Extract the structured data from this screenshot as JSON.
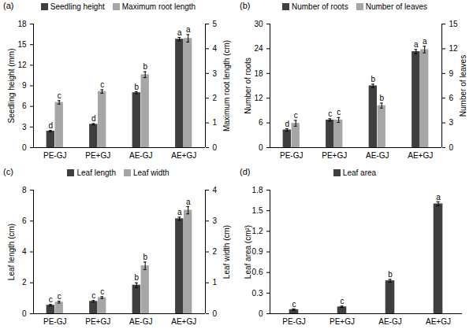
{
  "chart_data": [
    {
      "type": "bar",
      "title": "(a)",
      "legend": "top",
      "categories": [
        "PE-GJ",
        "PE+GJ",
        "AE-GJ",
        "AE+GJ"
      ],
      "ylabel": "Seedling height (mm)",
      "ylim": [
        0,
        18
      ],
      "yticks": [
        0,
        3,
        6,
        9,
        12,
        15,
        18
      ],
      "y2label": "Maximum root length (cm)",
      "y2lim": [
        0,
        5
      ],
      "y2ticks": [
        0,
        1,
        2,
        3,
        4,
        5
      ],
      "series": [
        {
          "name": "Seedling height",
          "color": "#3f3f3f",
          "values": [
            2.4,
            3.4,
            8.0,
            15.8
          ],
          "errors": [
            0.1,
            0.1,
            0.15,
            0.25
          ],
          "annotations": [
            "d",
            "d",
            "b",
            "a"
          ]
        },
        {
          "name": "Maximum root length",
          "color": "#a6a6a6",
          "axis": "y2",
          "values": [
            1.83,
            2.27,
            2.95,
            4.42
          ],
          "errors": [
            0.07,
            0.07,
            0.12,
            0.15
          ],
          "annotations": [
            "c",
            "c",
            "b",
            "a"
          ]
        }
      ]
    },
    {
      "type": "bar",
      "title": "(b)",
      "legend": "top",
      "categories": [
        "PE-GJ",
        "PE+GJ",
        "AE-GJ",
        "AE+GJ"
      ],
      "ylabel": "Number of roots",
      "ylim": [
        0,
        30
      ],
      "yticks": [
        0,
        6,
        12,
        18,
        24,
        30
      ],
      "y2label": "Number of leaves",
      "y2lim": [
        0,
        15
      ],
      "y2ticks": [
        0,
        3,
        6,
        9,
        12,
        15
      ],
      "series": [
        {
          "name": "Number of roots",
          "color": "#3f3f3f",
          "values": [
            4.3,
            6.7,
            15.0,
            23.3
          ],
          "errors": [
            0.3,
            0.3,
            0.4,
            0.5
          ],
          "annotations": [
            "d",
            "c",
            "b",
            "a"
          ]
        },
        {
          "name": "Number of leaves",
          "color": "#a6a6a6",
          "axis": "y2",
          "values": [
            2.95,
            3.35,
            5.1,
            11.9
          ],
          "errors": [
            0.35,
            0.3,
            0.3,
            0.4
          ],
          "annotations": [
            "c",
            "c",
            "b",
            "a"
          ]
        }
      ]
    },
    {
      "type": "bar",
      "title": "(c)",
      "legend": "top",
      "categories": [
        "PE-GJ",
        "PE+GJ",
        "AE-GJ",
        "AE+GJ"
      ],
      "ylabel": "Leaf length (cm)",
      "ylim": [
        0,
        8
      ],
      "yticks": [
        0,
        2,
        4,
        6,
        8
      ],
      "y2label": "Leaf width (cm)",
      "y2lim": [
        0,
        4
      ],
      "y2ticks": [
        0,
        1,
        2,
        3,
        4
      ],
      "series": [
        {
          "name": "Leaf length",
          "color": "#3f3f3f",
          "values": [
            0.55,
            0.8,
            1.85,
            6.15
          ],
          "errors": [
            0.05,
            0.05,
            0.15,
            0.1
          ],
          "annotations": [
            "c",
            "c",
            "b",
            "a"
          ]
        },
        {
          "name": "Leaf width",
          "color": "#a6a6a6",
          "axis": "y2",
          "values": [
            0.375,
            0.52,
            1.55,
            3.35
          ],
          "errors": [
            0.03,
            0.03,
            0.12,
            0.12
          ],
          "annotations": [
            "c",
            "c",
            "b",
            "a"
          ]
        }
      ]
    },
    {
      "type": "bar",
      "title": "(d)",
      "legend": "top",
      "categories": [
        "PE-GJ",
        "PE+GJ",
        "AE-GJ",
        "AE+GJ"
      ],
      "ylabel": "Leaf area (cm²)",
      "ylim": [
        0,
        1.8
      ],
      "yticks": [
        0,
        0.3,
        0.6,
        0.9,
        1.2,
        1.5,
        1.8
      ],
      "series": [
        {
          "name": "Leaf area",
          "color": "#3f3f3f",
          "values": [
            0.06,
            0.1,
            0.48,
            1.6
          ],
          "errors": [
            0.01,
            0.01,
            0.02,
            0.03
          ],
          "annotations": [
            "c",
            "c",
            "b",
            "a"
          ]
        }
      ]
    }
  ]
}
